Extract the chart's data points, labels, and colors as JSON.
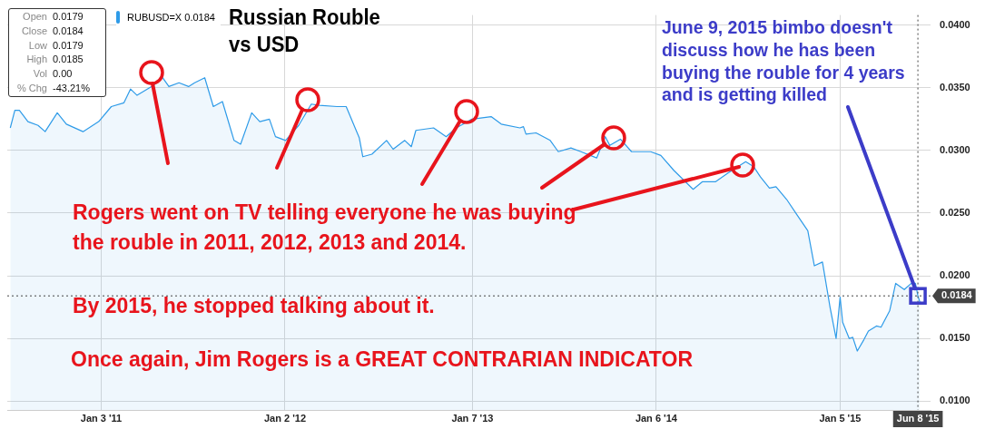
{
  "chart_data": {
    "type": "area",
    "title": "Russian Rouble vs USD",
    "annotations": [
      "Open",
      "0.0179",
      "Close",
      "0.0184",
      "Low",
      "0.0179",
      "High",
      "0.0185",
      "Vol",
      "0.00",
      "% Chg",
      "-43.21%",
      {
        "text": "June 9, 2015 bimbo doesn't discuss how he has been buying the rouble for 4 years and is getting killed",
        "x": "2015-06-08",
        "y": 0.0184
      },
      {
        "text": "Rogers went on TV telling everyone he was buying the rouble in 2011, 2012, 2013 and 2014.",
        "x": "2014-06-26",
        "y": 0.0288
      },
      "By 2015, he stopped talking about it.",
      "Once again, Jim Rogers is a GREAT CONTRARIAN INDICATOR"
    ],
    "x": [
      "2010-07-07",
      "2010-07-16",
      "2010-07-25",
      "2010-08-11",
      "2010-08-31",
      "2010-09-14",
      "2010-10-08",
      "2010-10-26",
      "2010-11-28",
      "2010-12-29",
      "2011-01-23",
      "2011-02-17",
      "2011-03-02",
      "2011-03-15",
      "2011-04-17",
      "2011-05-03",
      "2011-05-17",
      "2011-06-06",
      "2011-06-25",
      "2011-07-07",
      "2011-07-27",
      "2011-08-13",
      "2011-08-31",
      "2011-09-23",
      "2011-10-06",
      "2011-10-28",
      "2011-11-13",
      "2011-12-02",
      "2011-12-14",
      "2012-01-03",
      "2012-01-29",
      "2012-02-23",
      "2012-03-10",
      "2012-04-14",
      "2012-05-02",
      "2012-05-28",
      "2012-06-04",
      "2012-06-22",
      "2012-07-21",
      "2012-08-03",
      "2012-08-26",
      "2012-09-08",
      "2012-09-17",
      "2012-10-22",
      "2012-11-16",
      "2012-12-06",
      "2013-01-06",
      "2013-02-13",
      "2013-03-05",
      "2013-04-11",
      "2013-04-18",
      "2013-04-23",
      "2013-05-13",
      "2013-06-10",
      "2013-06-26",
      "2013-07-21",
      "2013-08-10",
      "2013-09-10",
      "2013-09-27",
      "2013-10-06",
      "2013-10-27",
      "2013-11-18",
      "2013-12-26",
      "2014-01-15",
      "2014-02-10",
      "2014-03-20",
      "2014-04-07",
      "2014-05-03",
      "2014-05-28",
      "2014-07-02",
      "2014-07-18",
      "2014-07-31",
      "2014-08-18",
      "2014-08-31",
      "2014-09-21",
      "2014-10-11",
      "2014-11-02",
      "2014-11-15",
      "2014-12-01",
      "2014-12-16",
      "2014-12-28",
      "2015-01-05",
      "2015-01-10",
      "2015-01-23",
      "2015-01-30",
      "2015-02-08",
      "2015-02-21",
      "2015-03-02",
      "2015-03-18",
      "2015-03-27",
      "2015-04-13",
      "2015-04-25",
      "2015-05-12",
      "2015-05-26",
      "2015-06-03",
      "2015-06-08",
      "2015-06-12"
    ],
    "series": [
      {
        "name": "RUBUSD=X 0.0184",
        "color": "#2e9be8",
        "values": [
          0.0318,
          0.0332,
          0.0332,
          0.0323,
          0.032,
          0.0315,
          0.033,
          0.0321,
          0.0315,
          0.0323,
          0.0335,
          0.0338,
          0.0349,
          0.0344,
          0.0352,
          0.0359,
          0.0351,
          0.0354,
          0.0351,
          0.0354,
          0.0358,
          0.0335,
          0.0339,
          0.0308,
          0.0305,
          0.033,
          0.0323,
          0.0325,
          0.0311,
          0.0308,
          0.032,
          0.0337,
          0.0336,
          0.0335,
          0.0335,
          0.031,
          0.0295,
          0.0297,
          0.0308,
          0.0301,
          0.0308,
          0.0303,
          0.0316,
          0.0318,
          0.0311,
          0.0318,
          0.0325,
          0.0327,
          0.0321,
          0.0318,
          0.0319,
          0.0313,
          0.0314,
          0.0308,
          0.0299,
          0.0302,
          0.0299,
          0.0294,
          0.0311,
          0.0304,
          0.0309,
          0.0299,
          0.0299,
          0.0296,
          0.0284,
          0.0269,
          0.0275,
          0.0275,
          0.0282,
          0.0291,
          0.0287,
          0.0279,
          0.027,
          0.0271,
          0.0261,
          0.0249,
          0.0236,
          0.0208,
          0.0211,
          0.0175,
          0.015,
          0.0183,
          0.0163,
          0.015,
          0.0151,
          0.014,
          0.0149,
          0.0156,
          0.016,
          0.0159,
          0.0172,
          0.0194,
          0.0189,
          0.0194,
          0.0194,
          0.0184,
          0.0179
        ]
      }
    ],
    "xlim": [
      "2010-07-01",
      "2015-07-03"
    ],
    "xticks": [
      {
        "value": "2011-01-03",
        "label": "Jan 3 '11"
      },
      {
        "value": "2012-01-02",
        "label": "Jan 2 '12"
      },
      {
        "value": "2013-01-07",
        "label": "Jan 7 '13"
      },
      {
        "value": "2014-01-06",
        "label": "Jan 6 '14"
      },
      {
        "value": "2015-01-05",
        "label": "Jan 5 '15"
      }
    ],
    "ylim": [
      0.0093,
      0.0408
    ],
    "yticks": [
      {
        "value": 0.01,
        "label": "0.0100"
      },
      {
        "value": 0.015,
        "label": "0.0150"
      },
      {
        "value": 0.02,
        "label": "0.0200"
      },
      {
        "value": 0.025,
        "label": "0.0250"
      },
      {
        "value": 0.03,
        "label": "0.0300"
      },
      {
        "value": 0.035,
        "label": "0.0350"
      },
      {
        "value": 0.04,
        "label": "0.0400"
      }
    ],
    "ref_lines": [
      {
        "axis": "y",
        "value": 0.0184,
        "label": "0.0184",
        "color": "#444444",
        "line_style": "dotted"
      },
      {
        "axis": "x",
        "value": "2015-06-08",
        "label": "Jun 8 '15",
        "color": "#444444",
        "line_style": "dotted"
      }
    ],
    "grid": true,
    "legend": "top left",
    "marker": "none",
    "line_style": "solid"
  }
}
